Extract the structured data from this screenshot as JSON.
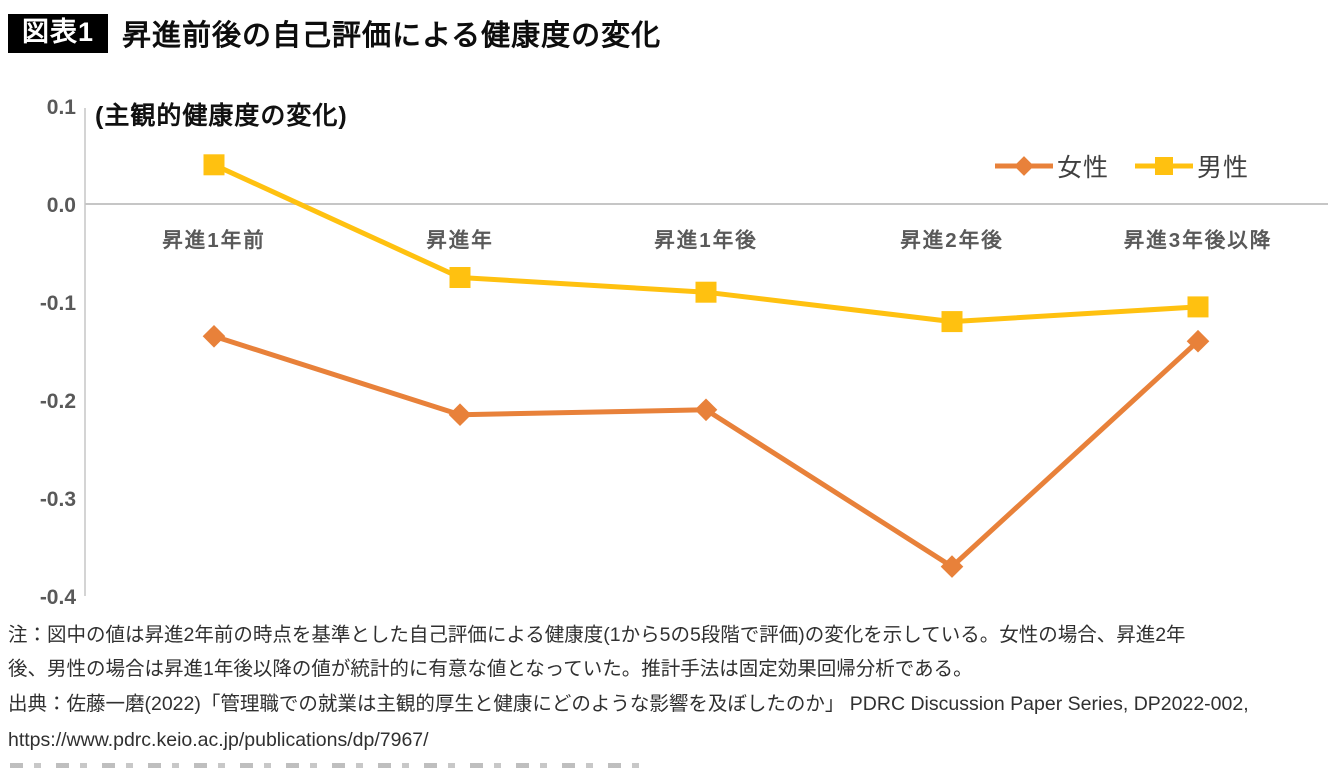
{
  "header": {
    "badge": "図表1",
    "title": "昇進前後の自己評価による健康度の変化"
  },
  "chart_data": {
    "type": "line",
    "subtitle": "(主観的健康度の変化)",
    "categories": [
      "昇進1年前",
      "昇進年",
      "昇進1年後",
      "昇進2年後",
      "昇進3年後以降"
    ],
    "series": [
      {
        "name": "女性",
        "marker": "diamond",
        "color": "#E8813A",
        "values": [
          -0.135,
          -0.215,
          -0.21,
          -0.37,
          -0.14
        ]
      },
      {
        "name": "男性",
        "marker": "square",
        "color": "#FFC110",
        "values": [
          0.04,
          -0.075,
          -0.09,
          -0.12,
          -0.105
        ]
      }
    ],
    "yticks": [
      "0.1",
      "0.0",
      "-0.1",
      "-0.2",
      "-0.3",
      "-0.4"
    ],
    "ylim": [
      -0.4,
      0.1
    ],
    "xlabel": "",
    "ylabel": "",
    "grid": "zero-line-only",
    "legend_position": "top-right",
    "axis_color": "#595959"
  },
  "notes": {
    "line1": "注：図中の値は昇進2年前の時点を基準とした自己評価による健康度(1から5の5段階で評価)の変化を示している。女性の場合、昇進2年",
    "line2": "後、男性の場合は昇進1年後以降の値が統計的に有意な値となっていた。推計手法は固定効果回帰分析である。",
    "source_line1": "出典：佐藤一磨(2022)「管理職での就業は主観的厚生と健康にどのような影響を及ぼしたのか」 PDRC Discussion Paper Series, DP2022-002,",
    "source_line2": "https://www.pdrc.keio.ac.jp/publications/dp/7967/"
  }
}
